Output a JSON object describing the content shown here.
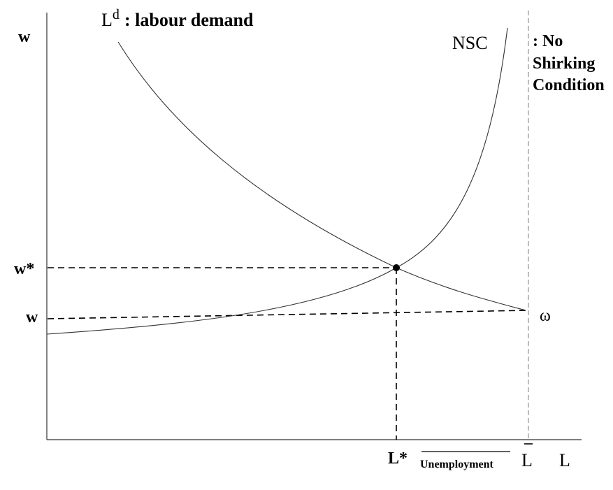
{
  "labels": {
    "y_axis": "w",
    "x_axis": "L",
    "w_star": "w*",
    "w_bar": "w",
    "l_star": "L*",
    "l_bar": "L",
    "unemployment": "Unemployment",
    "omega": "ω",
    "demand_main": "L",
    "demand_sup": "d",
    "demand_desc": ": labour demand",
    "nsc": "NSC",
    "nsc_desc_1": ": No",
    "nsc_desc_2": "Shirking",
    "nsc_desc_3": "Condition"
  },
  "colors": {
    "curve": "#333333",
    "axis": "#333333",
    "dashed": "#000000",
    "vertical_dashed": "#9a9a9a",
    "text": "#000000"
  }
}
